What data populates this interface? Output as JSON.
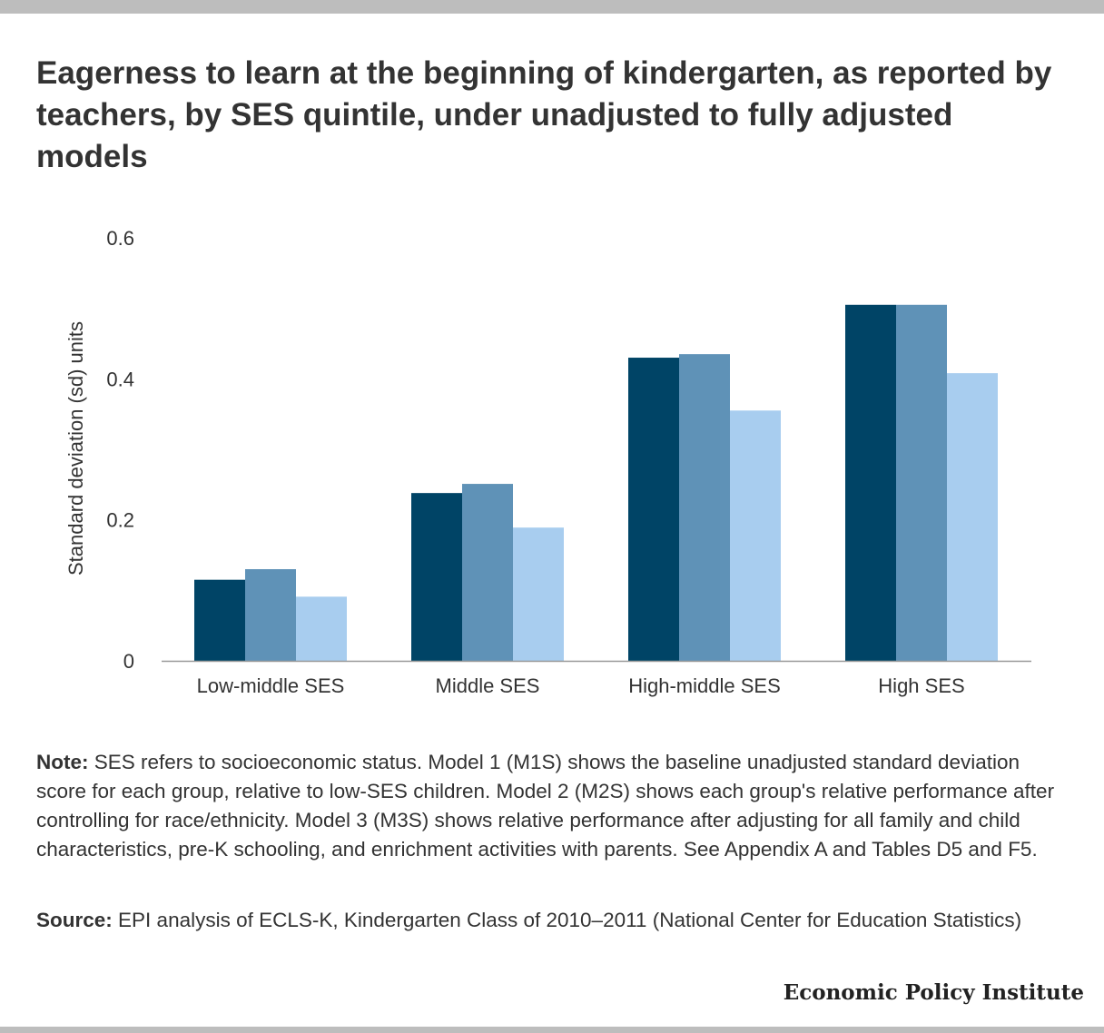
{
  "title": "Eagerness to learn at the beginning of kindergarten, as reported by teachers, by SES quintile, under unadjusted to fully adjusted models",
  "chart_data": {
    "type": "bar",
    "title": "Eagerness to learn at the beginning of kindergarten, as reported by teachers, by SES quintile, under unadjusted to fully adjusted models",
    "categories": [
      "Low-middle SES",
      "Middle SES",
      "High-middle SES",
      "High SES"
    ],
    "series": [
      {
        "values": [
          0.115,
          0.238,
          0.43,
          0.505
        ],
        "color": "#004466"
      },
      {
        "values": [
          0.13,
          0.251,
          0.435,
          0.505
        ],
        "color": "#5f92b7"
      },
      {
        "values": [
          0.091,
          0.189,
          0.355,
          0.408
        ],
        "color": "#a8cdef"
      }
    ],
    "ylabel": "Standard deviation (sd) units",
    "xlabel": "",
    "ylim": [
      0,
      0.6
    ],
    "yticks": [
      {
        "value": 0,
        "label": "0"
      },
      {
        "value": 0.2,
        "label": "0.2"
      },
      {
        "value": 0.4,
        "label": "0.4"
      },
      {
        "value": 0.6,
        "label": "0.6"
      }
    ],
    "grid": false,
    "legend": "none"
  },
  "note": {
    "lead": "Note:",
    "text": " SES refers to socioeconomic status. Model 1 (M1S) shows the baseline unadjusted standard deviation score for each group, relative to low-SES children. Model 2 (M2S) shows each group's relative performance after controlling for race/ethnicity. Model 3 (M3S) shows relative performance after adjusting for all family and child characteristics, pre-K schooling, and enrichment activities with parents. See Appendix A and Tables D5 and F5."
  },
  "source": {
    "lead": "Source:",
    "text": " EPI analysis of ECLS-K, Kindergarten Class of 2010–2011 (National Center for Education Statistics)"
  },
  "logo": "Economic Policy Institute",
  "colors": {
    "bars_dark": "#004466",
    "bars_mid": "#5f92b7",
    "bars_light": "#a8cdef",
    "bars_frame": "#bdbdbd"
  }
}
